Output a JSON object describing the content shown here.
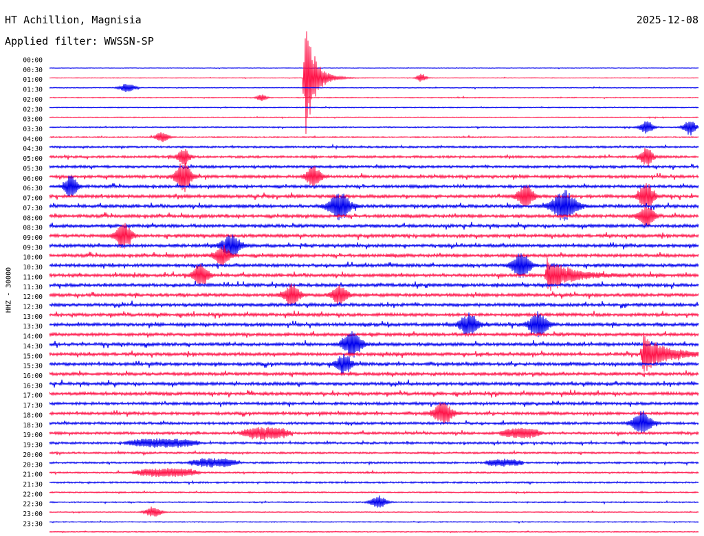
{
  "header": {
    "station": "HT Achillion, Magnisia",
    "filter_label": "Applied filter: WWSSN-SP",
    "date": "2025-12-08",
    "channel_label": "HHZ - 30000"
  },
  "colors": {
    "trace_a": "#0000ee",
    "trace_b": "#ff1449",
    "background": "#ffffff"
  },
  "chart_data": {
    "type": "line",
    "title": "HT Achillion, Magnisia",
    "subtitle": "Applied filter: WWSSN-SP",
    "ylabel": "HHZ - 30000",
    "grid": false,
    "legend": "none",
    "row_labels": [
      "00:00",
      "00:30",
      "01:00",
      "01:30",
      "02:00",
      "02:30",
      "03:00",
      "03:30",
      "04:00",
      "04:30",
      "05:00",
      "05:30",
      "06:00",
      "06:30",
      "07:00",
      "07:30",
      "08:00",
      "08:30",
      "09:00",
      "09:30",
      "10:00",
      "10:30",
      "11:00",
      "11:30",
      "12:00",
      "12:30",
      "13:00",
      "13:30",
      "14:00",
      "14:30",
      "15:00",
      "15:30",
      "16:00",
      "16:30",
      "17:00",
      "17:30",
      "18:00",
      "18:30",
      "19:00",
      "19:30",
      "20:00",
      "20:30",
      "21:00",
      "21:30",
      "22:00",
      "22:30",
      "23:00",
      "23:30"
    ],
    "row_minutes": 15,
    "noise_level": [
      0.2,
      0.2,
      0.3,
      0.3,
      0.3,
      0.3,
      0.4,
      0.4,
      0.6,
      0.7,
      0.8,
      0.9,
      0.9,
      1.0,
      1.0,
      1.0,
      1.0,
      1.0,
      1.0,
      1.0,
      1.0,
      1.0,
      1.0,
      1.0,
      1.0,
      1.0,
      1.0,
      1.0,
      1.0,
      1.0,
      1.0,
      1.0,
      1.0,
      1.0,
      0.9,
      0.9,
      0.8,
      0.8,
      0.7,
      0.6,
      0.6,
      0.5,
      0.5,
      0.4,
      0.4,
      0.3,
      0.3,
      0.3
    ],
    "events": [
      {
        "row": 1,
        "minute": 5.9,
        "amplitude": 95,
        "duration_min": 0.6,
        "kind": "quake"
      },
      {
        "row": 1,
        "minute": 8.6,
        "amplitude": 6,
        "duration_min": 0.3,
        "kind": "blip"
      },
      {
        "row": 2,
        "minute": 1.8,
        "amplitude": 6,
        "duration_min": 0.5,
        "kind": "blip"
      },
      {
        "row": 3,
        "minute": 4.9,
        "amplitude": 5,
        "duration_min": 0.3,
        "kind": "blip"
      },
      {
        "row": 6,
        "minute": 13.8,
        "amplitude": 10,
        "duration_min": 0.4,
        "kind": "blip"
      },
      {
        "row": 6,
        "minute": 14.8,
        "amplitude": 12,
        "duration_min": 0.4,
        "kind": "blip"
      },
      {
        "row": 7,
        "minute": 2.6,
        "amplitude": 8,
        "duration_min": 0.4,
        "kind": "blip"
      },
      {
        "row": 9,
        "minute": 3.1,
        "amplitude": 12,
        "duration_min": 0.4,
        "kind": "blip"
      },
      {
        "row": 9,
        "minute": 13.8,
        "amplitude": 14,
        "duration_min": 0.4,
        "kind": "blip"
      },
      {
        "row": 11,
        "minute": 3.1,
        "amplitude": 22,
        "duration_min": 0.5,
        "kind": "blip"
      },
      {
        "row": 11,
        "minute": 6.1,
        "amplitude": 14,
        "duration_min": 0.5,
        "kind": "blip"
      },
      {
        "row": 12,
        "minute": 0.5,
        "amplitude": 18,
        "duration_min": 0.4,
        "kind": "blip"
      },
      {
        "row": 13,
        "minute": 11.0,
        "amplitude": 16,
        "duration_min": 0.5,
        "kind": "blip"
      },
      {
        "row": 13,
        "minute": 13.8,
        "amplitude": 18,
        "duration_min": 0.5,
        "kind": "blip"
      },
      {
        "row": 14,
        "minute": 6.7,
        "amplitude": 20,
        "duration_min": 0.7,
        "kind": "blip"
      },
      {
        "row": 14,
        "minute": 11.9,
        "amplitude": 22,
        "duration_min": 0.8,
        "kind": "blip"
      },
      {
        "row": 15,
        "minute": 13.8,
        "amplitude": 16,
        "duration_min": 0.5,
        "kind": "blip"
      },
      {
        "row": 17,
        "minute": 1.7,
        "amplitude": 20,
        "duration_min": 0.5,
        "kind": "blip"
      },
      {
        "row": 18,
        "minute": 4.2,
        "amplitude": 16,
        "duration_min": 0.6,
        "kind": "blip"
      },
      {
        "row": 19,
        "minute": 4.0,
        "amplitude": 14,
        "duration_min": 0.5,
        "kind": "blip"
      },
      {
        "row": 20,
        "minute": 10.9,
        "amplitude": 18,
        "duration_min": 0.6,
        "kind": "blip"
      },
      {
        "row": 21,
        "minute": 3.5,
        "amplitude": 16,
        "duration_min": 0.5,
        "kind": "blip"
      },
      {
        "row": 21,
        "minute": 11.5,
        "amplitude": 26,
        "duration_min": 1.4,
        "kind": "quake"
      },
      {
        "row": 23,
        "minute": 5.6,
        "amplitude": 16,
        "duration_min": 0.5,
        "kind": "blip"
      },
      {
        "row": 23,
        "minute": 6.7,
        "amplitude": 14,
        "duration_min": 0.5,
        "kind": "blip"
      },
      {
        "row": 26,
        "minute": 9.7,
        "amplitude": 16,
        "duration_min": 0.6,
        "kind": "blip"
      },
      {
        "row": 26,
        "minute": 11.3,
        "amplitude": 18,
        "duration_min": 0.6,
        "kind": "blip"
      },
      {
        "row": 28,
        "minute": 7.0,
        "amplitude": 18,
        "duration_min": 0.6,
        "kind": "blip"
      },
      {
        "row": 29,
        "minute": 13.7,
        "amplitude": 30,
        "duration_min": 1.4,
        "kind": "quake"
      },
      {
        "row": 30,
        "minute": 6.8,
        "amplitude": 14,
        "duration_min": 0.5,
        "kind": "blip"
      },
      {
        "row": 35,
        "minute": 9.1,
        "amplitude": 16,
        "duration_min": 0.6,
        "kind": "blip"
      },
      {
        "row": 36,
        "minute": 13.7,
        "amplitude": 18,
        "duration_min": 0.6,
        "kind": "blip"
      },
      {
        "row": 37,
        "minute": 5.0,
        "amplitude": 8,
        "duration_min": 1.2,
        "kind": "tremor"
      },
      {
        "row": 37,
        "minute": 10.9,
        "amplitude": 7,
        "duration_min": 1.0,
        "kind": "tremor"
      },
      {
        "row": 38,
        "minute": 2.6,
        "amplitude": 6,
        "duration_min": 1.8,
        "kind": "tremor"
      },
      {
        "row": 40,
        "minute": 3.8,
        "amplitude": 6,
        "duration_min": 1.2,
        "kind": "tremor"
      },
      {
        "row": 40,
        "minute": 10.5,
        "amplitude": 5,
        "duration_min": 0.9,
        "kind": "tremor"
      },
      {
        "row": 41,
        "minute": 2.7,
        "amplitude": 6,
        "duration_min": 1.6,
        "kind": "tremor"
      },
      {
        "row": 44,
        "minute": 7.6,
        "amplitude": 10,
        "duration_min": 0.5,
        "kind": "blip"
      },
      {
        "row": 45,
        "minute": 2.4,
        "amplitude": 8,
        "duration_min": 0.5,
        "kind": "blip"
      }
    ]
  }
}
